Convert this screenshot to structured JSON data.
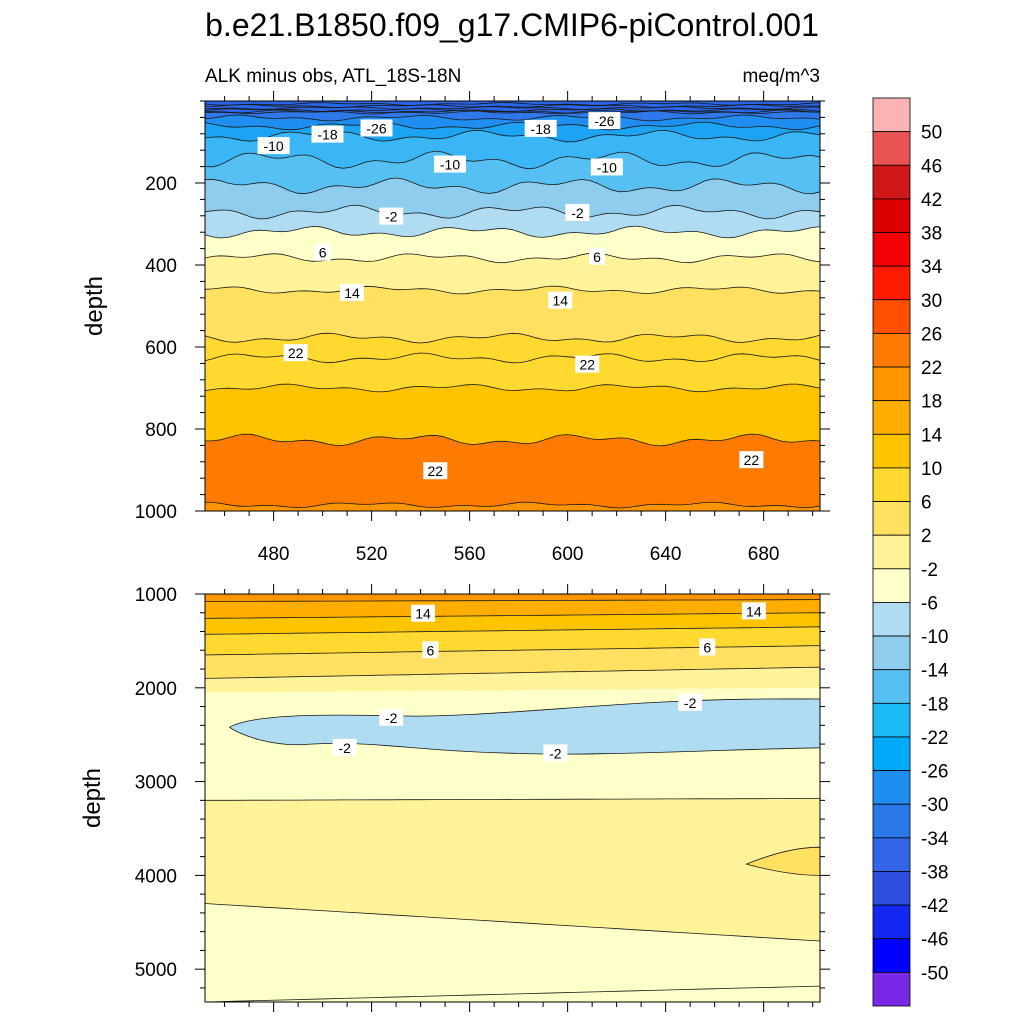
{
  "title": "b.e21.B1850.f09_g17.CMIP6-piControl.001",
  "chart_data": {
    "type": "heatmap",
    "subtitle_left": "ALK minus obs, ATL_18S-18N",
    "subtitle_right": "meq/m^3",
    "xlim": [
      452,
      703
    ],
    "x_ticks": [
      "480",
      "520",
      "560",
      "600",
      "640",
      "680"
    ],
    "x_tick_values": [
      480,
      520,
      560,
      600,
      640,
      680
    ],
    "colorbar": {
      "labels": [
        "50",
        "46",
        "42",
        "38",
        "34",
        "30",
        "26",
        "22",
        "18",
        "14",
        "10",
        "6",
        "2",
        "-2",
        "-6",
        "-10",
        "-14",
        "-18",
        "-22",
        "-26",
        "-30",
        "-34",
        "-38",
        "-42",
        "-46",
        "-50"
      ],
      "colors": [
        "#fbb3b3",
        "#e85454",
        "#d01818",
        "#dc0000",
        "#f40000",
        "#ff1a00",
        "#ff5000",
        "#ff7a00",
        "#ff9600",
        "#ffae00",
        "#ffc400",
        "#ffd830",
        "#ffe060",
        "#fff39a",
        "#ffffca",
        "#b0dcf2",
        "#8fcdef",
        "#56c0f3",
        "#1cbcf6",
        "#00aaf6",
        "#1f8ef0",
        "#2a78e8",
        "#3366e6",
        "#2f4fe0",
        "#1428f2",
        "#0000ff",
        "#7a28e8"
      ]
    },
    "panels": [
      {
        "name": "upper",
        "ylabel": "depth",
        "ylim": [
          0,
          1000
        ],
        "y_ticks": [
          "200",
          "400",
          "600",
          "800",
          "1000"
        ],
        "y_tick_values": [
          200,
          400,
          600,
          800,
          1000
        ],
        "contour_labels": [
          {
            "text": "-10",
            "x": 480,
            "y": 110
          },
          {
            "text": "-18",
            "x": 502,
            "y": 82
          },
          {
            "text": "-26",
            "x": 522,
            "y": 67
          },
          {
            "text": "-18",
            "x": 589,
            "y": 68
          },
          {
            "text": "-26",
            "x": 615,
            "y": 49
          },
          {
            "text": "-10",
            "x": 552,
            "y": 155
          },
          {
            "text": "-10",
            "x": 616,
            "y": 162
          },
          {
            "text": "-2",
            "x": 528,
            "y": 282
          },
          {
            "text": "-2",
            "x": 604,
            "y": 273
          },
          {
            "text": "6",
            "x": 500,
            "y": 370
          },
          {
            "text": "6",
            "x": 612,
            "y": 380
          },
          {
            "text": "14",
            "x": 512,
            "y": 468
          },
          {
            "text": "14",
            "x": 597,
            "y": 487
          },
          {
            "text": "22",
            "x": 489,
            "y": 615
          },
          {
            "text": "22",
            "x": 608,
            "y": 643
          },
          {
            "text": "22",
            "x": 546,
            "y": 903
          },
          {
            "text": "22",
            "x": 675,
            "y": 876
          }
        ]
      },
      {
        "name": "lower",
        "ylabel": "depth",
        "ylim": [
          1000,
          5350
        ],
        "y_ticks": [
          "1000",
          "2000",
          "3000",
          "4000",
          "5000"
        ],
        "y_tick_values": [
          1000,
          2000,
          3000,
          4000,
          5000
        ],
        "contour_labels": [
          {
            "text": "14",
            "x": 541,
            "y": 1210
          },
          {
            "text": "14",
            "x": 676,
            "y": 1185
          },
          {
            "text": "6",
            "x": 544,
            "y": 1600
          },
          {
            "text": "6",
            "x": 657,
            "y": 1570
          },
          {
            "text": "-2",
            "x": 528,
            "y": 2320
          },
          {
            "text": "-2",
            "x": 650,
            "y": 2160
          },
          {
            "text": "-2",
            "x": 509,
            "y": 2640
          },
          {
            "text": "-2",
            "x": 595,
            "y": 2700
          }
        ]
      }
    ]
  }
}
